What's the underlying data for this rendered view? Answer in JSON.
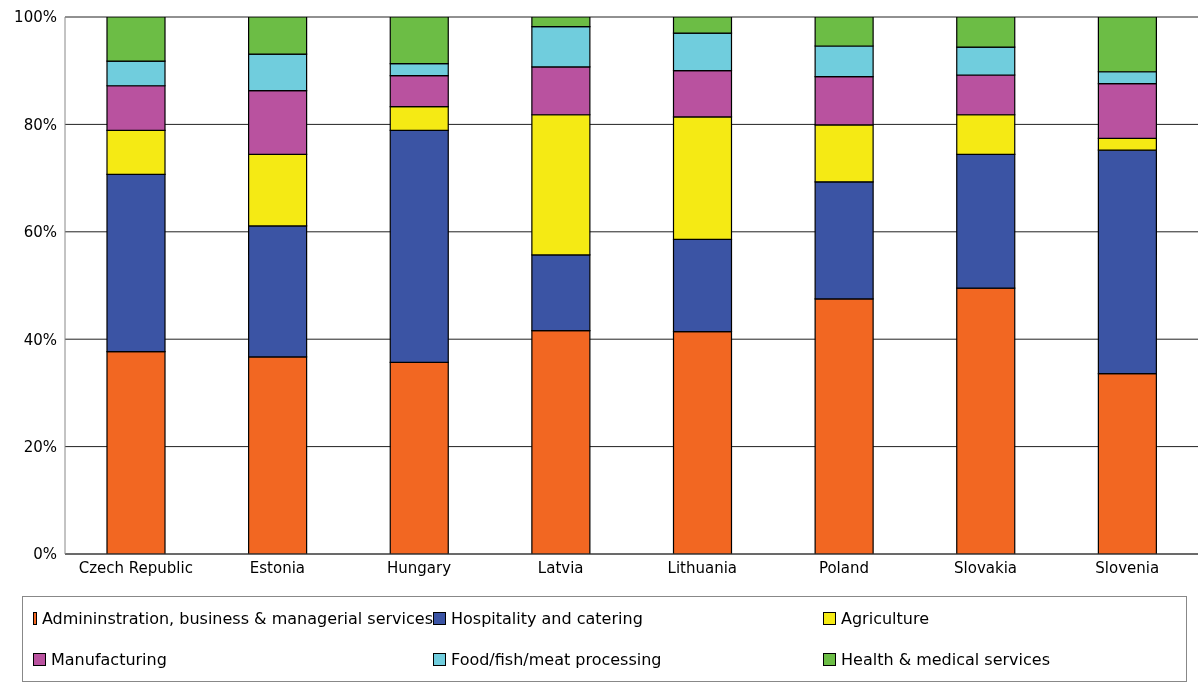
{
  "chart_data": {
    "type": "bar",
    "stacked": true,
    "categories": [
      "Czech Republic",
      "Estonia",
      "Hungary",
      "Latvia",
      "Lithuania",
      "Poland",
      "Slovakia",
      "Slovenia"
    ],
    "series": [
      {
        "name": "Admininstration, business & managerial services",
        "color": "#f26722",
        "values": [
          37.7,
          36.7,
          35.7,
          41.6,
          41.4,
          47.5,
          49.5,
          33.6
        ]
      },
      {
        "name": "Hospitality and catering",
        "color": "#3b54a4",
        "values": [
          33.0,
          24.4,
          43.2,
          14.1,
          17.2,
          21.8,
          24.9,
          41.6
        ]
      },
      {
        "name": "Agriculture",
        "color": "#f5ea14",
        "values": [
          8.2,
          13.3,
          4.4,
          26.1,
          22.8,
          10.6,
          7.4,
          2.2
        ]
      },
      {
        "name": "Manufacturing",
        "color": "#b9529f",
        "values": [
          8.3,
          11.9,
          5.8,
          8.9,
          8.6,
          9.0,
          7.4,
          10.2
        ]
      },
      {
        "name": "Food/fish/meat processing",
        "color": "#70cddd",
        "values": [
          4.6,
          6.8,
          2.2,
          7.5,
          7.0,
          5.7,
          5.2,
          2.2
        ]
      },
      {
        "name": "Health & medical services",
        "color": "#6cbd45",
        "values": [
          8.2,
          6.9,
          8.7,
          1.8,
          3.0,
          5.4,
          5.6,
          10.2
        ]
      }
    ],
    "ylim": [
      0,
      100
    ],
    "yticks": [
      {
        "value": 0,
        "label": "0%"
      },
      {
        "value": 20,
        "label": "20%"
      },
      {
        "value": 40,
        "label": "40%"
      },
      {
        "value": 60,
        "label": "60%"
      },
      {
        "value": 80,
        "label": "80%"
      },
      {
        "value": 100,
        "label": "100%"
      }
    ],
    "grid": "y",
    "legend": "bottom"
  }
}
